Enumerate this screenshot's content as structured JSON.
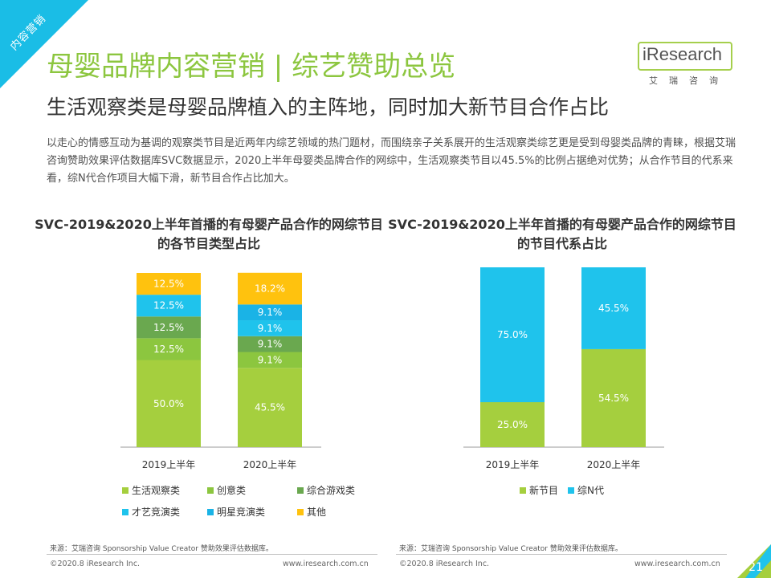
{
  "corner_tag": "内容营销",
  "header": {
    "title": "母婴品牌内容营销 | 综艺赞助总览",
    "logo_text": "iResearch",
    "logo_sub": "艾瑞咨询",
    "subtitle": "生活观察类是母婴品牌植入的主阵地，同时加大新节目合作占比"
  },
  "description": "以走心的情感互动为基调的观察类节目是近两年内综艺领域的热门题材，而围绕亲子关系展开的生活观察类综艺更是受到母婴类品牌的青睐，根据艾瑞咨询赞助效果评估数据库SVC数据显示，2020上半年母婴类品牌合作的网综中，生活观察类节目以45.5%的比例占据绝对优势；从合作节目的代系来看，综N代合作项目大幅下滑，新节目合作占比加大。",
  "colors": {
    "life": "#a5cf3e",
    "creative": "#8cc63f",
    "game": "#6aa84f",
    "talent": "#1fc3ec",
    "star": "#1ab3e6",
    "other": "#ffc20e",
    "newshow": "#a5cf3e",
    "sequel": "#1fc3ec"
  },
  "chart_data": [
    {
      "type": "bar",
      "stacked": true,
      "title": "SVC-2019&2020上半年首播的有母婴产品合作的网综节目的各节目类型占比",
      "categories": [
        "2019上半年",
        "2020上半年"
      ],
      "series": [
        {
          "name": "生活观察类",
          "values": [
            50.0,
            45.5
          ],
          "labels": [
            "50.0%",
            "45.5%"
          ],
          "color_key": "life"
        },
        {
          "name": "创意类",
          "values": [
            12.5,
            9.1
          ],
          "labels": [
            "12.5%",
            "9.1%"
          ],
          "color_key": "creative"
        },
        {
          "name": "综合游戏类",
          "values": [
            12.5,
            9.1
          ],
          "labels": [
            "12.5%",
            "9.1%"
          ],
          "color_key": "game"
        },
        {
          "name": "才艺竞演类",
          "values": [
            12.5,
            9.1
          ],
          "labels": [
            "12.5%",
            "9.1%"
          ],
          "color_key": "talent"
        },
        {
          "name": "明星竞演类",
          "values": [
            0,
            9.1
          ],
          "labels": [
            "",
            "9.1%"
          ],
          "color_key": "star"
        },
        {
          "name": "其他",
          "values": [
            12.5,
            18.2
          ],
          "labels": [
            "12.5%",
            "18.2%"
          ],
          "color_key": "other"
        }
      ],
      "ylim": [
        0,
        100
      ],
      "source": "来源：艾瑞咨询 Sponsorship Value Creator 赞助效果评估数据库。",
      "footer_left": "©2020.8 iResearch Inc.",
      "footer_right": "www.iresearch.com.cn"
    },
    {
      "type": "bar",
      "stacked": true,
      "title": "SVC-2019&2020上半年首播的有母婴产品合作的网综节目的节目代系占比",
      "categories": [
        "2019上半年",
        "2020上半年"
      ],
      "series": [
        {
          "name": "新节目",
          "values": [
            25.0,
            54.5
          ],
          "labels": [
            "25.0%",
            "54.5%"
          ],
          "color_key": "newshow"
        },
        {
          "name": "综N代",
          "values": [
            75.0,
            45.5
          ],
          "labels": [
            "75.0%",
            "45.5%"
          ],
          "color_key": "sequel"
        }
      ],
      "ylim": [
        0,
        100
      ],
      "source": "来源：艾瑞咨询 Sponsorship Value Creator 赞助效果评估数据库。",
      "footer_left": "©2020.8 iResearch Inc.",
      "footer_right": "www.iresearch.com.cn"
    }
  ],
  "page_number": "21"
}
